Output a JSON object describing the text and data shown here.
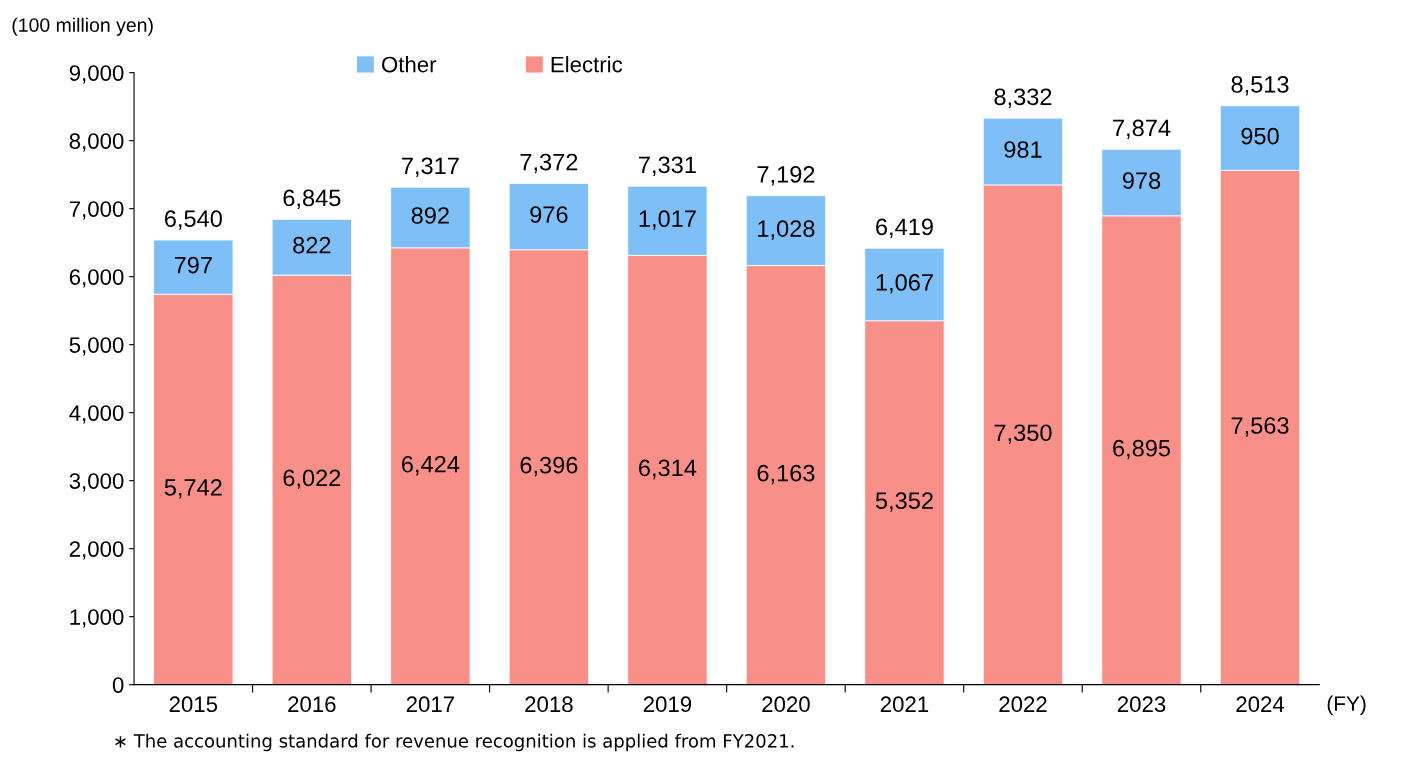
{
  "chart_data": {
    "type": "bar",
    "stacked": true,
    "ylabel": "(100 million yen)",
    "xlabel": "(FY)",
    "categories": [
      "2015",
      "2016",
      "2017",
      "2018",
      "2019",
      "2020",
      "2021",
      "2022",
      "2023",
      "2024"
    ],
    "series": [
      {
        "name": "Electric",
        "color": "#f88f88",
        "values": [
          5742,
          6022,
          6424,
          6396,
          6314,
          6163,
          5352,
          7350,
          6895,
          7563
        ],
        "value_labels": [
          "5,742",
          "6,022",
          "6,424",
          "6,396",
          "6,314",
          "6,163",
          "5,352",
          "7,350",
          "6,895",
          "7,563"
        ]
      },
      {
        "name": "Other",
        "color": "#7fbff7",
        "values": [
          797,
          822,
          892,
          976,
          1017,
          1028,
          1067,
          981,
          978,
          950
        ],
        "value_labels": [
          "797",
          "822",
          "892",
          "976",
          "1,017",
          "1,028",
          "1,067",
          "981",
          "978",
          "950"
        ]
      }
    ],
    "totals": [
      "6,540",
      "6,845",
      "7,317",
      "7,372",
      "7,331",
      "7,192",
      "6,419",
      "8,332",
      "7,874",
      "8,513"
    ],
    "ylim": [
      0,
      9000
    ],
    "yticks": [
      {
        "value": 0,
        "label": "0"
      },
      {
        "value": 1000,
        "label": "1,000"
      },
      {
        "value": 2000,
        "label": "2,000"
      },
      {
        "value": 3000,
        "label": "3,000"
      },
      {
        "value": 4000,
        "label": "4,000"
      },
      {
        "value": 5000,
        "label": "5,000"
      },
      {
        "value": 6000,
        "label": "6,000"
      },
      {
        "value": 7000,
        "label": "7,000"
      },
      {
        "value": 8000,
        "label": "8,000"
      },
      {
        "value": 9000,
        "label": "9,000"
      }
    ],
    "grid": false,
    "legend": "top",
    "annotations": [
      "∗ The accounting standard for revenue recognition is applied from FY2021."
    ]
  }
}
